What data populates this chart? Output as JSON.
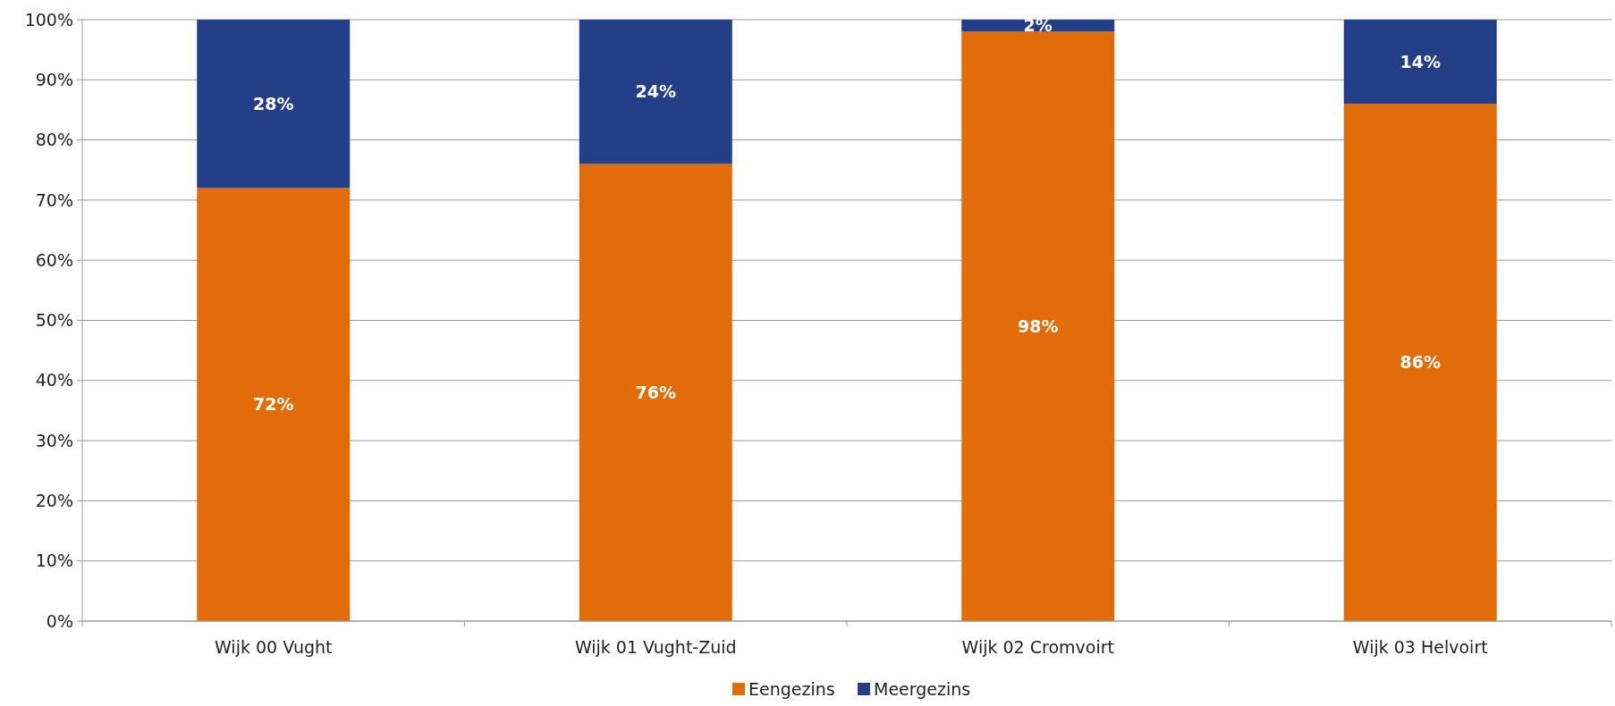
{
  "chart_data": {
    "type": "bar",
    "stacked": true,
    "categories": [
      "Wijk 00 Vught",
      "Wijk 01 Vught-Zuid",
      "Wijk 02 Cromvoirt",
      "Wijk 03 Helvoirt"
    ],
    "series": [
      {
        "name": "Eengezins",
        "color": "#e36c0a",
        "values": [
          72,
          76,
          98,
          86
        ],
        "value_labels": [
          "72%",
          "76%",
          "98%",
          "86%"
        ]
      },
      {
        "name": "Meergezins",
        "color": "#223f87",
        "values": [
          28,
          24,
          2,
          14
        ],
        "value_labels": [
          "28%",
          "24%",
          "2%",
          "14%"
        ]
      }
    ],
    "ylim": [
      0,
      100
    ],
    "yticks": [
      {
        "value": 0,
        "label": "0%"
      },
      {
        "value": 10,
        "label": "10%"
      },
      {
        "value": 20,
        "label": "20%"
      },
      {
        "value": 30,
        "label": "30%"
      },
      {
        "value": 40,
        "label": "40%"
      },
      {
        "value": 50,
        "label": "50%"
      },
      {
        "value": 60,
        "label": "60%"
      },
      {
        "value": 70,
        "label": "70%"
      },
      {
        "value": 80,
        "label": "80%"
      },
      {
        "value": 90,
        "label": "90%"
      },
      {
        "value": 100,
        "label": "100%"
      }
    ],
    "grid": "y",
    "legend": "bottom"
  }
}
